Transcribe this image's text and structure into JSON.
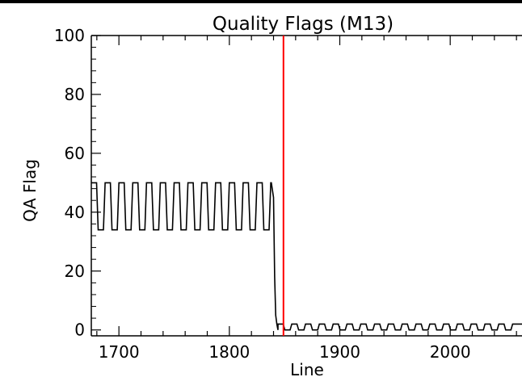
{
  "chart_data": {
    "type": "line",
    "title": "Quality Flags (M13)",
    "xlabel": "Line",
    "ylabel": "QA Flag",
    "xlim": [
      1675,
      2065
    ],
    "ylim": [
      -2,
      100
    ],
    "x_ticks": [
      1700,
      1800,
      1900,
      2000
    ],
    "y_ticks": [
      0,
      20,
      40,
      60,
      80,
      100
    ],
    "grid": false,
    "colors": {
      "line": "#000000",
      "marker": "#ff0000",
      "axes": "#000000"
    },
    "vertical_marker": {
      "x": 1849,
      "color": "#ff0000"
    },
    "series": [
      {
        "style": "square-wave",
        "x_start": 1675,
        "x_end": 2065,
        "segments": [
          {
            "x_start": 1675,
            "x_end": 1838,
            "high": 50,
            "low": 34,
            "period": 12.5
          },
          {
            "x_start": 1838,
            "x_end": 1844,
            "transition": [
              [
                1838,
                50
              ],
              [
                1840,
                45
              ],
              [
                1841,
                18
              ],
              [
                1842,
                5
              ],
              [
                1843,
                2
              ],
              [
                1844,
                0
              ]
            ]
          },
          {
            "x_start": 1844,
            "x_end": 2065,
            "high": 2,
            "low": 0,
            "period": 12.5
          }
        ]
      }
    ]
  }
}
